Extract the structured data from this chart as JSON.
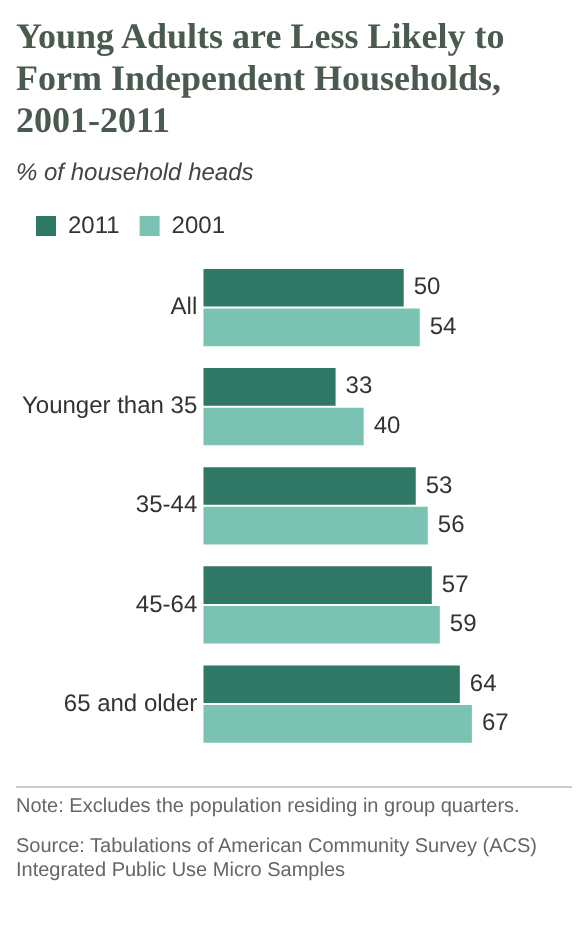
{
  "chart_data": {
    "type": "bar",
    "orientation": "horizontal",
    "title": "Young Adults are Less Likely to Form Independent Households, 2001-2011",
    "subtitle": "% of household heads",
    "categories": [
      "All",
      "Younger than 35",
      "35-44",
      "45-64",
      "65 and older"
    ],
    "series": [
      {
        "name": "2011",
        "color": "#2f7866",
        "values": [
          50,
          33,
          53,
          57,
          64
        ]
      },
      {
        "name": "2001",
        "color": "#7ac3b3",
        "values": [
          54,
          40,
          56,
          59,
          67
        ]
      }
    ],
    "data_labels": true,
    "legend": "top left",
    "grid": false,
    "annotations": [
      "Note: Excludes the population residing in group quarters.",
      "Source: Tabulations of American Community Survey (ACS) Integrated Public Use Micro Samples"
    ]
  }
}
